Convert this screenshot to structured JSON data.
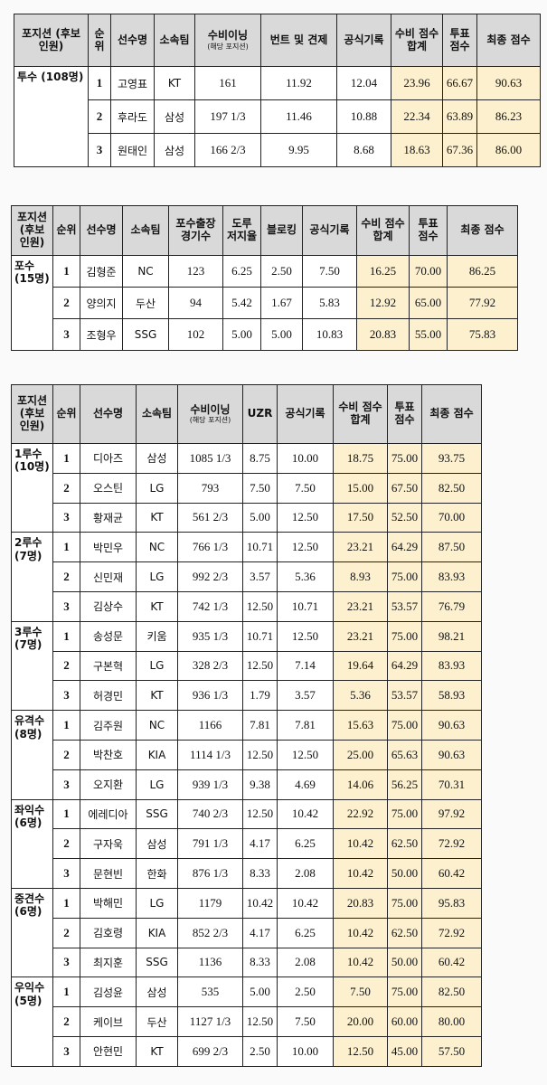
{
  "tables": [
    {
      "headers": [
        "포지션 (후보 인원)",
        "순위",
        "선수명",
        "소속팀",
        {
          "text": "수비이닝",
          "sub": "(해당 포지션)"
        },
        "번트 및 견제",
        "공식기록",
        "수비 점수 합계",
        "투표 점수",
        "최종 점수"
      ],
      "groups": [
        {
          "position": "투수 (108명)",
          "rows": [
            [
              "1",
              "고영표",
              "KT",
              "161",
              "11.92",
              "12.04",
              "23.96",
              "66.67",
              "90.63"
            ],
            [
              "2",
              "후라도",
              "삼성",
              "197 1/3",
              "11.46",
              "10.88",
              "22.34",
              "63.89",
              "86.23"
            ],
            [
              "3",
              "원태인",
              "삼성",
              "166 2/3",
              "9.95",
              "8.68",
              "18.63",
              "67.36",
              "86.00"
            ]
          ]
        }
      ]
    },
    {
      "headers": [
        "포지션 (후보 인원)",
        "순위",
        "선수명",
        "소속팀",
        "포수출장 경기수",
        "도루 저지율",
        "블로킹",
        "공식기록",
        "수비 점수 합계",
        "투표 점수",
        "최종 점수"
      ],
      "groups": [
        {
          "position": "포수 (15명)",
          "rows": [
            [
              "1",
              "김형준",
              "NC",
              "123",
              "6.25",
              "2.50",
              "7.50",
              "16.25",
              "70.00",
              "86.25"
            ],
            [
              "2",
              "양의지",
              "두산",
              "94",
              "5.42",
              "1.67",
              "5.83",
              "12.92",
              "65.00",
              "77.92"
            ],
            [
              "3",
              "조형우",
              "SSG",
              "102",
              "5.00",
              "5.00",
              "10.83",
              "20.83",
              "55.00",
              "75.83"
            ]
          ]
        }
      ]
    },
    {
      "headers": [
        "포지션 (후보 인원)",
        "순위",
        "선수명",
        "소속팀",
        {
          "text": "수비이닝",
          "sub": "(해당 포지션)"
        },
        "UZR",
        "공식기록",
        "수비 점수 합계",
        "투표 점수",
        "최종 점수"
      ],
      "groups": [
        {
          "position": "1루수 (10명)",
          "rows": [
            [
              "1",
              "디아즈",
              "삼성",
              "1085 1/3",
              "8.75",
              "10.00",
              "18.75",
              "75.00",
              "93.75"
            ],
            [
              "2",
              "오스틴",
              "LG",
              "793",
              "7.50",
              "7.50",
              "15.00",
              "67.50",
              "82.50"
            ],
            [
              "3",
              "황재균",
              "KT",
              "561 2/3",
              "5.00",
              "12.50",
              "17.50",
              "52.50",
              "70.00"
            ]
          ]
        },
        {
          "position": "2루수 (7명)",
          "rows": [
            [
              "1",
              "박민우",
              "NC",
              "766 1/3",
              "10.71",
              "12.50",
              "23.21",
              "64.29",
              "87.50"
            ],
            [
              "2",
              "신민재",
              "LG",
              "992 2/3",
              "3.57",
              "5.36",
              "8.93",
              "75.00",
              "83.93"
            ],
            [
              "3",
              "김상수",
              "KT",
              "742 1/3",
              "12.50",
              "10.71",
              "23.21",
              "53.57",
              "76.79"
            ]
          ]
        },
        {
          "position": "3루수 (7명)",
          "rows": [
            [
              "1",
              "송성문",
              "키움",
              "935 1/3",
              "10.71",
              "12.50",
              "23.21",
              "75.00",
              "98.21"
            ],
            [
              "2",
              "구본혁",
              "LG",
              "328 2/3",
              "12.50",
              "7.14",
              "19.64",
              "64.29",
              "83.93"
            ],
            [
              "3",
              "허경민",
              "KT",
              "936 1/3",
              "1.79",
              "3.57",
              "5.36",
              "53.57",
              "58.93"
            ]
          ]
        },
        {
          "position": "유격수 (8명)",
          "rows": [
            [
              "1",
              "김주원",
              "NC",
              "1166",
              "7.81",
              "7.81",
              "15.63",
              "75.00",
              "90.63"
            ],
            [
              "2",
              "박찬호",
              "KIA",
              "1114 1/3",
              "12.50",
              "12.50",
              "25.00",
              "65.63",
              "90.63"
            ],
            [
              "3",
              "오지환",
              "LG",
              "939 1/3",
              "9.38",
              "4.69",
              "14.06",
              "56.25",
              "70.31"
            ]
          ]
        },
        {
          "position": "좌익수 (6명)",
          "rows": [
            [
              "1",
              "에레디아",
              "SSG",
              "740 2/3",
              "12.50",
              "10.42",
              "22.92",
              "75.00",
              "97.92"
            ],
            [
              "2",
              "구자욱",
              "삼성",
              "791 1/3",
              "4.17",
              "6.25",
              "10.42",
              "62.50",
              "72.92"
            ],
            [
              "3",
              "문현빈",
              "한화",
              "876 1/3",
              "8.33",
              "2.08",
              "10.42",
              "50.00",
              "60.42"
            ]
          ]
        },
        {
          "position": "중견수 (6명)",
          "rows": [
            [
              "1",
              "박해민",
              "LG",
              "1179",
              "10.42",
              "10.42",
              "20.83",
              "75.00",
              "95.83"
            ],
            [
              "2",
              "김호령",
              "KIA",
              "852 2/3",
              "4.17",
              "6.25",
              "10.42",
              "62.50",
              "72.92"
            ],
            [
              "3",
              "최지훈",
              "SSG",
              "1136",
              "8.33",
              "2.08",
              "10.42",
              "50.00",
              "60.42"
            ]
          ]
        },
        {
          "position": "우익수 (5명)",
          "rows": [
            [
              "1",
              "김성윤",
              "삼성",
              "535",
              "5.00",
              "2.50",
              "7.50",
              "75.00",
              "82.50"
            ],
            [
              "2",
              "케이브",
              "두산",
              "1127 1/3",
              "12.50",
              "7.50",
              "20.00",
              "60.00",
              "80.00"
            ],
            [
              "3",
              "안현민",
              "KT",
              "699 2/3",
              "2.50",
              "10.00",
              "12.50",
              "45.00",
              "57.50"
            ]
          ]
        }
      ]
    }
  ]
}
